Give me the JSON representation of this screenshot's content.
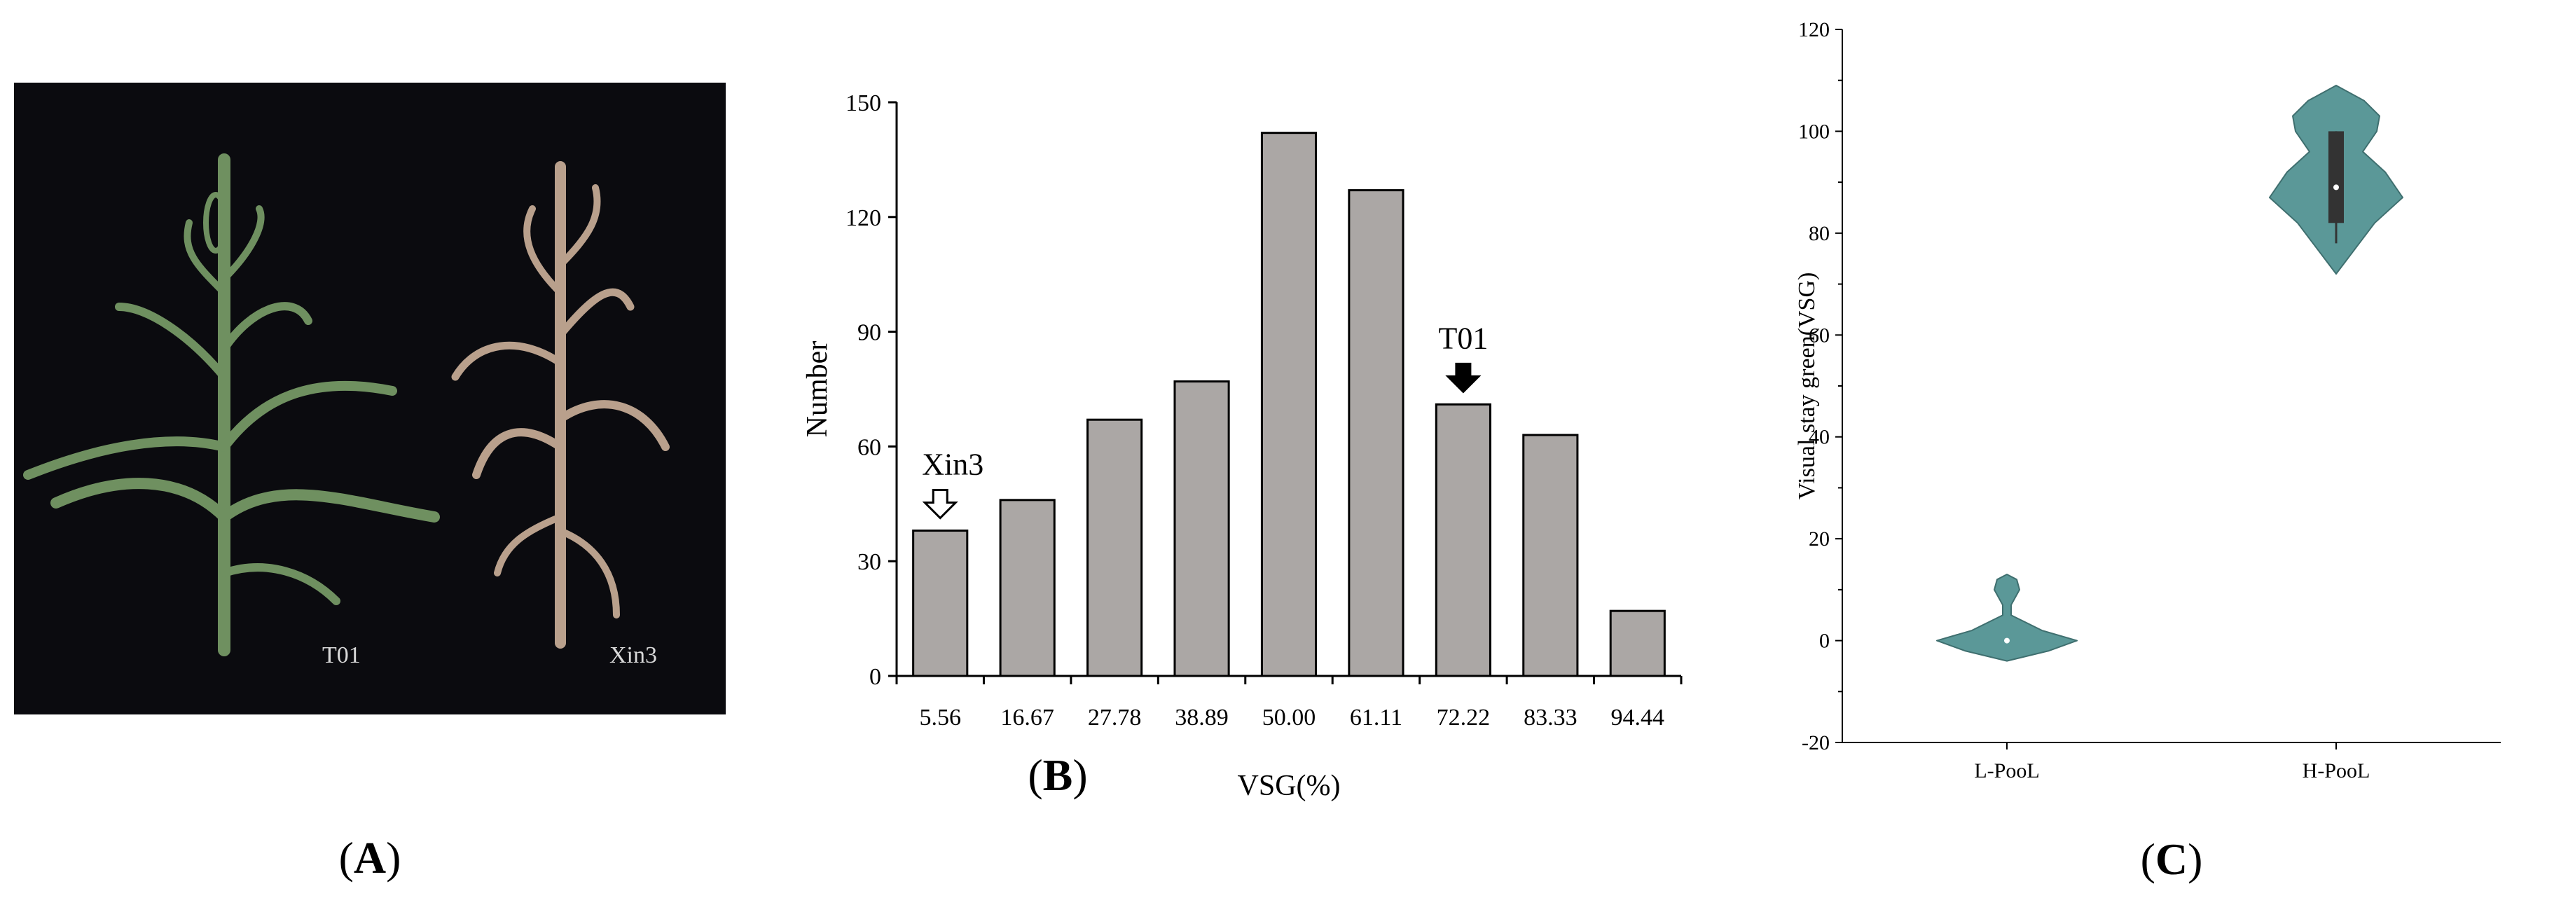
{
  "panels": [
    {
      "open": "(",
      "letter": "A",
      "close": ")"
    },
    {
      "open": "(",
      "letter": "B",
      "close": ")"
    },
    {
      "open": "(",
      "letter": "C",
      "close": ")"
    }
  ],
  "photo": {
    "label_left": "T01",
    "label_right": "Xin3",
    "colors": {
      "background": "#0b0b0f",
      "green_plant": "#6f9060",
      "senesced_plant": "#b9a08c"
    }
  },
  "chart_data": [
    {
      "type": "bar",
      "categories": [
        "5.56",
        "16.67",
        "27.78",
        "38.89",
        "50.00",
        "61.11",
        "72.22",
        "83.33",
        "94.44"
      ],
      "values": [
        38,
        46,
        67,
        77,
        142,
        127,
        71,
        63,
        17
      ],
      "xlabel": "VSG(%)",
      "ylabel": "Number",
      "ylim": [
        0,
        150
      ],
      "yticks": [
        "0",
        "30",
        "60",
        "90",
        "120",
        "150"
      ],
      "bar_color": "#aba7a5",
      "annotations": [
        {
          "text": "Xin3",
          "category": "5.56",
          "arrow": "hollow-down"
        },
        {
          "text": "T01",
          "category": "72.22",
          "arrow": "filled-down"
        }
      ]
    },
    {
      "type": "violin",
      "categories": [
        "L-PooL",
        "H-PooL"
      ],
      "ylabel": "Visual stay green(VSG)",
      "ylim": [
        -20,
        120
      ],
      "yticks": [
        "-20",
        "0",
        "20",
        "40",
        "60",
        "80",
        "100",
        "120"
      ],
      "fill_color": "#5b9898",
      "series": [
        {
          "category": "L-PooL",
          "median": 0,
          "min": -4,
          "max": 13,
          "q1": 0,
          "q3": 0
        },
        {
          "category": "H-PooL",
          "median": 89,
          "min": 72,
          "max": 109,
          "q1": 82,
          "q3": 100
        }
      ]
    }
  ]
}
